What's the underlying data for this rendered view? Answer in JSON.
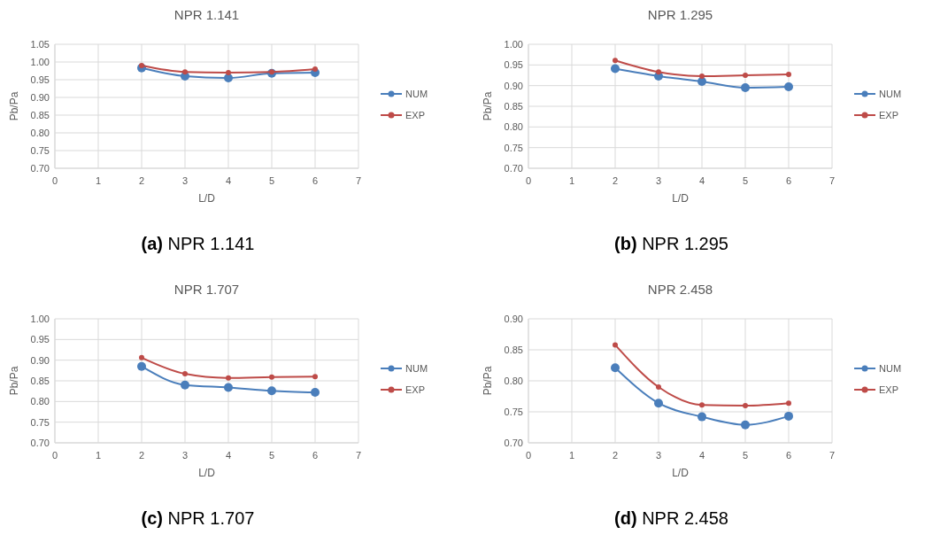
{
  "chart_data": [
    {
      "type": "line",
      "title": "NPR 1.141",
      "xlabel": "L/D",
      "ylabel": "Pb/Pa",
      "x": [
        2,
        3,
        4,
        5,
        6
      ],
      "xlim": [
        0,
        7
      ],
      "xticks": [
        0,
        1,
        2,
        3,
        4,
        5,
        6,
        7
      ],
      "ylim": [
        0.7,
        1.05
      ],
      "yticks": [
        {
          "value": 0.7,
          "label": "0.70"
        },
        {
          "value": 0.75,
          "label": "0.75"
        },
        {
          "value": 0.8,
          "label": "0.80"
        },
        {
          "value": 0.85,
          "label": "0.85"
        },
        {
          "value": 0.9,
          "label": "0.90"
        },
        {
          "value": 0.95,
          "label": "0.95"
        },
        {
          "value": 1.0,
          "label": "1.00"
        },
        {
          "value": 1.05,
          "label": "1.05"
        }
      ],
      "grid": true,
      "legend": "right",
      "marker": "circle",
      "annotations": [
        "(a) NPR 1.141"
      ],
      "series": [
        {
          "name": "NUM",
          "color": "#4a7ebb",
          "values": [
            0.983,
            0.96,
            0.955,
            0.968,
            0.97
          ]
        },
        {
          "name": "EXP",
          "color": "#be4b48",
          "values": [
            0.99,
            0.972,
            0.97,
            0.972,
            0.98
          ]
        }
      ]
    },
    {
      "type": "line",
      "title": "NPR 1.295",
      "xlabel": "L/D",
      "ylabel": "Pb/Pa",
      "x": [
        2,
        3,
        4,
        5,
        6
      ],
      "xlim": [
        0,
        7
      ],
      "xticks": [
        0,
        1,
        2,
        3,
        4,
        5,
        6,
        7
      ],
      "ylim": [
        0.7,
        1.0
      ],
      "yticks": [
        {
          "value": 0.7,
          "label": "0.70"
        },
        {
          "value": 0.75,
          "label": "0.75"
        },
        {
          "value": 0.8,
          "label": "0.80"
        },
        {
          "value": 0.85,
          "label": "0.85"
        },
        {
          "value": 0.9,
          "label": "0.90"
        },
        {
          "value": 0.95,
          "label": "0.95"
        },
        {
          "value": 1.0,
          "label": "1.00"
        }
      ],
      "grid": true,
      "legend": "right",
      "marker": "circle",
      "annotations": [
        "(b) NPR 1.295"
      ],
      "series": [
        {
          "name": "NUM",
          "color": "#4a7ebb",
          "values": [
            0.941,
            0.923,
            0.91,
            0.895,
            0.897
          ]
        },
        {
          "name": "EXP",
          "color": "#be4b48",
          "values": [
            0.961,
            0.933,
            0.923,
            0.925,
            0.927
          ]
        }
      ]
    },
    {
      "type": "line",
      "title": "NPR 1.707",
      "xlabel": "L/D",
      "ylabel": "Pb/Pa",
      "x": [
        2,
        3,
        4,
        5,
        6
      ],
      "xlim": [
        0,
        7
      ],
      "xticks": [
        0,
        1,
        2,
        3,
        4,
        5,
        6,
        7
      ],
      "ylim": [
        0.7,
        1.0
      ],
      "yticks": [
        {
          "value": 0.7,
          "label": "0.70"
        },
        {
          "value": 0.75,
          "label": "0.75"
        },
        {
          "value": 0.8,
          "label": "0.80"
        },
        {
          "value": 0.85,
          "label": "0.85"
        },
        {
          "value": 0.9,
          "label": "0.90"
        },
        {
          "value": 0.95,
          "label": "0.95"
        },
        {
          "value": 1.0,
          "label": "1.00"
        }
      ],
      "grid": true,
      "legend": "right",
      "marker": "circle",
      "annotations": [
        "(c) NPR 1.707"
      ],
      "series": [
        {
          "name": "NUM",
          "color": "#4a7ebb",
          "values": [
            0.885,
            0.84,
            0.834,
            0.826,
            0.822
          ]
        },
        {
          "name": "EXP",
          "color": "#be4b48",
          "values": [
            0.906,
            0.867,
            0.857,
            0.859,
            0.86
          ]
        }
      ]
    },
    {
      "type": "line",
      "title": "NPR 2.458",
      "xlabel": "L/D",
      "ylabel": "Pb/Pa",
      "x": [
        2,
        3,
        4,
        5,
        6
      ],
      "xlim": [
        0,
        7
      ],
      "xticks": [
        0,
        1,
        2,
        3,
        4,
        5,
        6,
        7
      ],
      "ylim": [
        0.7,
        0.9
      ],
      "yticks": [
        {
          "value": 0.7,
          "label": "0.70"
        },
        {
          "value": 0.75,
          "label": "0.75"
        },
        {
          "value": 0.8,
          "label": "0.80"
        },
        {
          "value": 0.85,
          "label": "0.85"
        },
        {
          "value": 0.9,
          "label": "0.90"
        }
      ],
      "grid": true,
      "legend": "right",
      "marker": "circle",
      "annotations": [
        "(d) NPR 2.458"
      ],
      "series": [
        {
          "name": "NUM",
          "color": "#4a7ebb",
          "values": [
            0.821,
            0.764,
            0.742,
            0.729,
            0.743
          ]
        },
        {
          "name": "EXP",
          "color": "#be4b48",
          "values": [
            0.858,
            0.79,
            0.761,
            0.76,
            0.764
          ]
        }
      ]
    }
  ]
}
